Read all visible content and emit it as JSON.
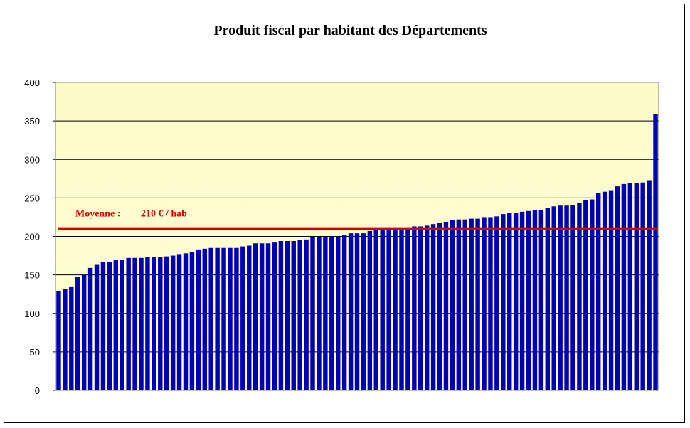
{
  "chart_data": {
    "type": "bar",
    "title": "Produit fiscal par habitant des Départements",
    "xlabel": "",
    "ylabel": "",
    "ylim": [
      0,
      400
    ],
    "yticks": [
      0,
      50,
      100,
      150,
      200,
      250,
      300,
      350,
      400
    ],
    "grid": true,
    "legend": "none",
    "average": {
      "value": 210,
      "label_prefix": "Moyenne :",
      "label_value": "210 € / hab",
      "color": "#d40000"
    },
    "colors": {
      "bar": "#0000b4",
      "plot_background": "#ffffd2",
      "plot_background_top": "#fbfbc8",
      "average_line": "#d40000"
    },
    "values": [
      129,
      132,
      135,
      147,
      150,
      159,
      163,
      167,
      167,
      169,
      170,
      172,
      172,
      172,
      173,
      173,
      173,
      174,
      175,
      177,
      178,
      180,
      183,
      184,
      185,
      185,
      185,
      185,
      185,
      187,
      188,
      191,
      191,
      191,
      192,
      194,
      194,
      194,
      195,
      196,
      199,
      199,
      199,
      200,
      200,
      202,
      204,
      204,
      204,
      207,
      208,
      210,
      210,
      210,
      210,
      210,
      213,
      213,
      214,
      216,
      218,
      219,
      221,
      222,
      222,
      223,
      223,
      225,
      225,
      226,
      229,
      230,
      230,
      232,
      233,
      234,
      234,
      237,
      239,
      240,
      240,
      241,
      243,
      247,
      248,
      256,
      258,
      260,
      265,
      268,
      269,
      269,
      270,
      273,
      359
    ]
  }
}
